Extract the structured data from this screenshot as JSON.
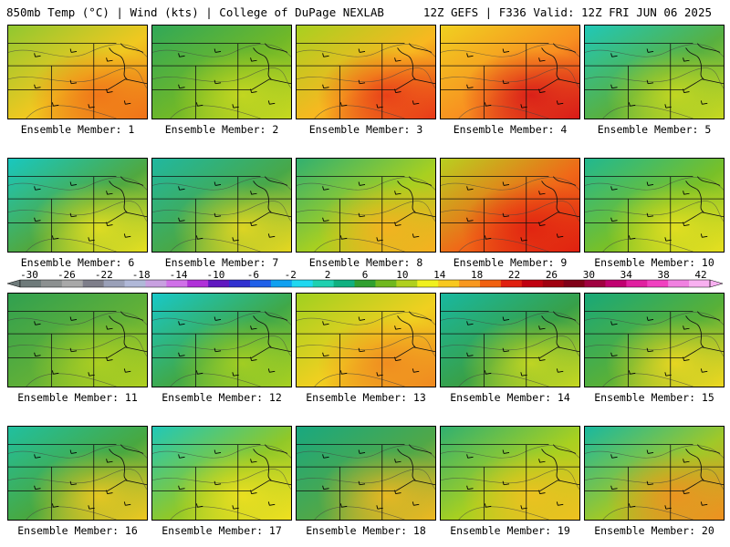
{
  "header": {
    "left": "850mb Temp (°C) | Wind (kts) | College of DuPage NEXLAB",
    "right": "12Z GEFS | F336 Valid: 12Z FRI JUN 06 2025"
  },
  "colorbar": {
    "ticks": [
      "-30",
      "-26",
      "-22",
      "-18",
      "-14",
      "-10",
      "-6",
      "-2",
      "2",
      "6",
      "10",
      "14",
      "18",
      "22",
      "26",
      "30",
      "34",
      "38",
      "42"
    ],
    "colors": [
      "#6e7a7a",
      "#8c9090",
      "#a8a8a8",
      "#7e7e8a",
      "#9aa0b8",
      "#b0b8d8",
      "#c8a0e0",
      "#d070e8",
      "#b030d8",
      "#6018c0",
      "#3030d0",
      "#2060e8",
      "#10a0f0",
      "#20d8f0",
      "#20d0b0",
      "#10b080",
      "#30a030",
      "#70b820",
      "#b0d020",
      "#f0f020",
      "#f8c820",
      "#f89820",
      "#f06010",
      "#e02010",
      "#c00010",
      "#a00010",
      "#800018",
      "#a00040",
      "#c00070",
      "#e020a0",
      "#f040c0",
      "#f080e0",
      "#f8b0f0"
    ]
  },
  "members": [
    {
      "label": "Ensemble Member: 1",
      "base": "#f0c820",
      "hot": "#f07018",
      "cool": "#90c830"
    },
    {
      "label": "Ensemble Member: 2",
      "base": "#70b828",
      "hot": "#c8d820",
      "cool": "#30a858"
    },
    {
      "label": "Ensemble Member: 3",
      "base": "#f8b820",
      "hot": "#e83818",
      "cool": "#a8d020"
    },
    {
      "label": "Ensemble Member: 4",
      "base": "#f89020",
      "hot": "#d81818",
      "cool": "#f0d020"
    },
    {
      "label": "Ensemble Member: 5",
      "base": "#58b040",
      "hot": "#c8d820",
      "cool": "#20c8b8"
    },
    {
      "label": "Ensemble Member: 6",
      "base": "#50a840",
      "hot": "#e8e020",
      "cool": "#18c8c0"
    },
    {
      "label": "Ensemble Member: 7",
      "base": "#48a848",
      "hot": "#e8d820",
      "cool": "#20b8a0"
    },
    {
      "label": "Ensemble Member: 8",
      "base": "#a8d020",
      "hot": "#f8b020",
      "cool": "#30b070"
    },
    {
      "label": "Ensemble Member: 9",
      "base": "#f06818",
      "hot": "#e02010",
      "cool": "#b8d020"
    },
    {
      "label": "Ensemble Member: 10",
      "base": "#78c028",
      "hot": "#e8e020",
      "cool": "#20b890"
    },
    {
      "label": "Ensemble Member: 11",
      "base": "#60b038",
      "hot": "#b0d020",
      "cool": "#30a050"
    },
    {
      "label": "Ensemble Member: 12",
      "base": "#40a848",
      "hot": "#a8d020",
      "cool": "#18c8c8"
    },
    {
      "label": "Ensemble Member: 13",
      "base": "#f0d020",
      "hot": "#f08820",
      "cool": "#a0d020"
    },
    {
      "label": "Ensemble Member: 14",
      "base": "#38a048",
      "hot": "#c8d820",
      "cool": "#18b8a0"
    },
    {
      "label": "Ensemble Member: 15",
      "base": "#58b038",
      "hot": "#f0d820",
      "cool": "#18a878"
    },
    {
      "label": "Ensemble Member: 16",
      "base": "#48a840",
      "hot": "#f0c820",
      "cool": "#20c0a0"
    },
    {
      "label": "Ensemble Member: 17",
      "base": "#90c828",
      "hot": "#f0e020",
      "cool": "#20c8b8"
    },
    {
      "label": "Ensemble Member: 18",
      "base": "#50a848",
      "hot": "#f0b820",
      "cool": "#18a880"
    },
    {
      "label": "Ensemble Member: 19",
      "base": "#a8d020",
      "hot": "#f0c020",
      "cool": "#30b070"
    },
    {
      "label": "Ensemble Member: 20",
      "base": "#a0c828",
      "hot": "#f09020",
      "cool": "#18b8a0"
    }
  ]
}
